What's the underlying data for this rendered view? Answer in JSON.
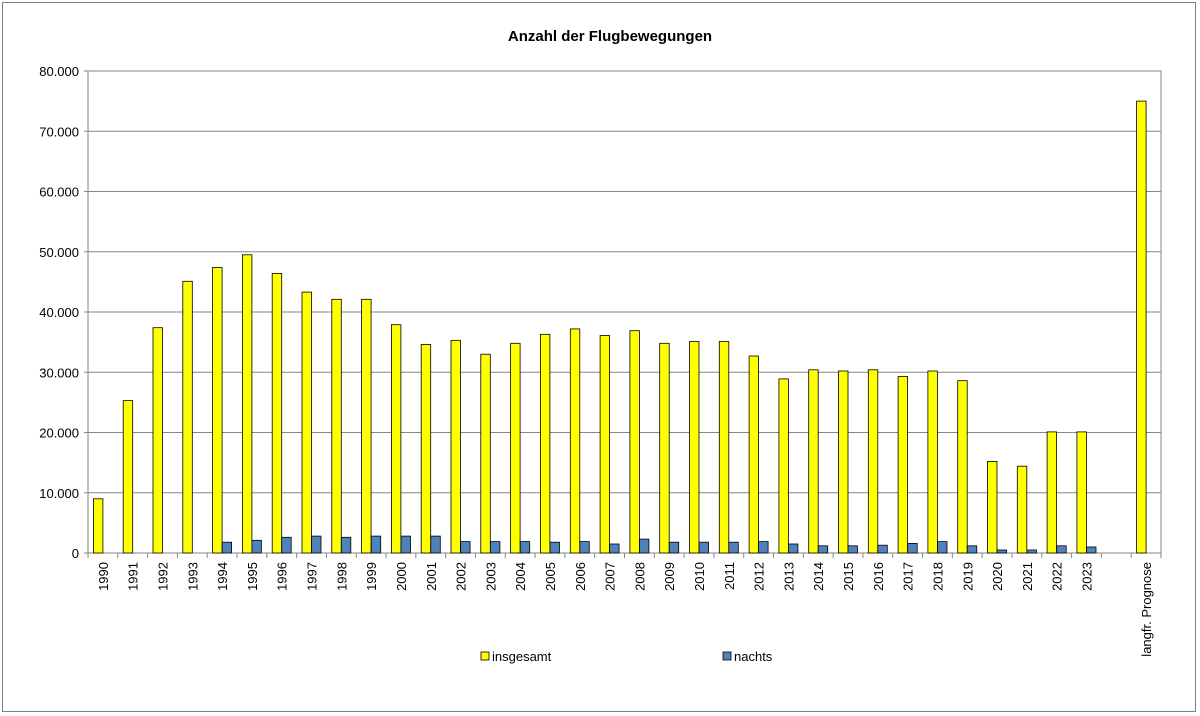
{
  "chart_data": {
    "type": "bar",
    "title": "Anzahl der Flugbewegungen",
    "xlabel": "",
    "ylabel": "",
    "ylim": [
      0,
      80000
    ],
    "yticks": [
      0,
      10000,
      20000,
      30000,
      40000,
      50000,
      60000,
      70000,
      80000
    ],
    "ytick_labels": [
      "0",
      "10.000",
      "20.000",
      "30.000",
      "40.000",
      "50.000",
      "60.000",
      "70.000",
      "80.000"
    ],
    "grid": true,
    "legend_position": "bottom",
    "categories": [
      "1990",
      "1991",
      "1992",
      "1993",
      "1994",
      "1995",
      "1996",
      "1997",
      "1998",
      "1999",
      "2000",
      "2001",
      "2002",
      "2003",
      "2004",
      "2005",
      "2006",
      "2007",
      "2008",
      "2009",
      "2010",
      "2011",
      "2012",
      "2013",
      "2014",
      "2015",
      "2016",
      "2017",
      "2018",
      "2019",
      "2020",
      "2021",
      "2022",
      "2023",
      "",
      "langfr. Prognose"
    ],
    "series": [
      {
        "name": "insgesamt",
        "color": "#ffff00",
        "values": [
          9000,
          25300,
          37400,
          45100,
          47400,
          49500,
          46400,
          43300,
          42100,
          42100,
          37900,
          34600,
          35300,
          33000,
          34800,
          36300,
          37200,
          36100,
          36900,
          34800,
          35100,
          35100,
          32700,
          28900,
          30400,
          30200,
          30400,
          29300,
          30200,
          28600,
          15200,
          14400,
          20100,
          20100,
          null,
          75000
        ]
      },
      {
        "name": "nachts",
        "color": "#4f81bd",
        "values": [
          null,
          null,
          null,
          null,
          1800,
          2100,
          2600,
          2800,
          2600,
          2800,
          2800,
          2800,
          1900,
          1900,
          1900,
          1800,
          1900,
          1500,
          2300,
          1800,
          1800,
          1800,
          1900,
          1500,
          1200,
          1200,
          1300,
          1600,
          1900,
          1200,
          500,
          500,
          1200,
          1000,
          null,
          null
        ]
      }
    ]
  }
}
